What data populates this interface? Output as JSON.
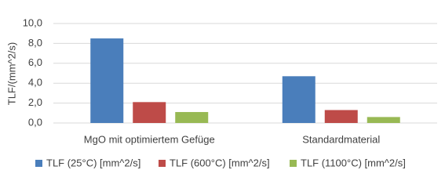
{
  "chart_data": {
    "type": "bar",
    "y_label": "TLF/(mm^2/s)",
    "categories": [
      "MgO mit optimiertem Gefüge",
      "Standardmaterial"
    ],
    "series": [
      {
        "name": "TLF (25°C) [mm^2/s]",
        "color": "#4a7ebb",
        "values": [
          8.5,
          4.7
        ]
      },
      {
        "name": "TLF (600°C) [mm^2/s]",
        "color": "#be4b48",
        "values": [
          2.1,
          1.3
        ]
      },
      {
        "name": "TLF (1100°C) [mm^2/s]",
        "color": "#98b954",
        "values": [
          1.1,
          0.6
        ]
      }
    ],
    "ylim": [
      0,
      10
    ],
    "yticks": [
      {
        "value": 0,
        "label": "0,0"
      },
      {
        "value": 2,
        "label": "2,0"
      },
      {
        "value": 4,
        "label": "4,0"
      },
      {
        "value": 6,
        "label": "6,0"
      },
      {
        "value": 8,
        "label": "8,0"
      },
      {
        "value": 10,
        "label": "10,0"
      }
    ],
    "grid": true,
    "legend": "bottom"
  }
}
